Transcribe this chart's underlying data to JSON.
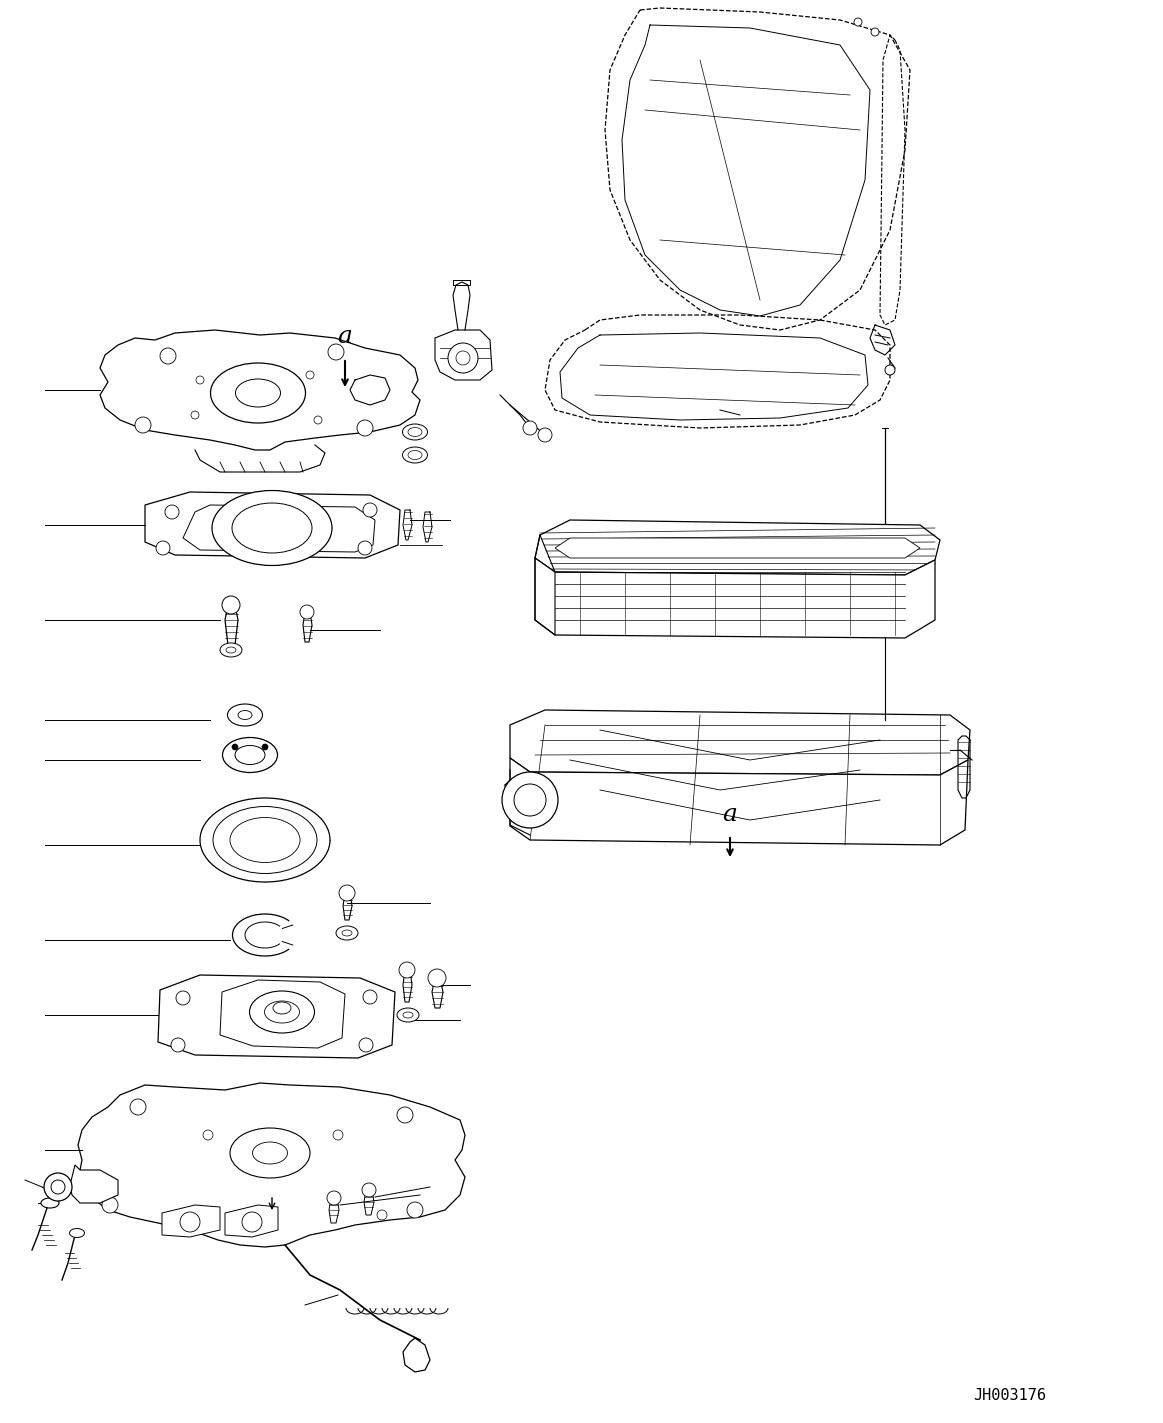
{
  "bg_color": "#ffffff",
  "line_color": "#000000",
  "fig_width": 11.63,
  "fig_height": 14.23,
  "watermark": "JH003176"
}
